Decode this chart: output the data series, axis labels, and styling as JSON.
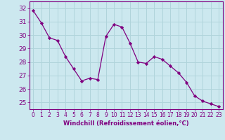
{
  "x": [
    0,
    1,
    2,
    3,
    4,
    5,
    6,
    7,
    8,
    9,
    10,
    11,
    12,
    13,
    14,
    15,
    16,
    17,
    18,
    19,
    20,
    21,
    22,
    23
  ],
  "y": [
    31.8,
    30.9,
    29.8,
    29.6,
    28.4,
    27.5,
    26.6,
    26.8,
    26.7,
    29.9,
    30.8,
    30.6,
    29.4,
    28.0,
    27.9,
    28.4,
    28.2,
    27.7,
    27.2,
    26.5,
    25.5,
    25.1,
    24.9,
    24.7
  ],
  "line_color": "#800080",
  "marker": "D",
  "marker_size": 2.2,
  "bg_color": "#cce8ef",
  "grid_color": "#b0d4db",
  "xlabel": "Windchill (Refroidissement éolien,°C)",
  "xlabel_color": "#800080",
  "tick_color": "#800080",
  "ylim": [
    24.5,
    32.5
  ],
  "yticks": [
    25,
    26,
    27,
    28,
    29,
    30,
    31,
    32
  ],
  "xlim": [
    -0.5,
    23.5
  ],
  "xticks": [
    0,
    1,
    2,
    3,
    4,
    5,
    6,
    7,
    8,
    9,
    10,
    11,
    12,
    13,
    14,
    15,
    16,
    17,
    18,
    19,
    20,
    21,
    22,
    23
  ],
  "tick_fontsize": 5.5,
  "xlabel_fontsize": 6.0,
  "ytick_fontsize": 6.5
}
